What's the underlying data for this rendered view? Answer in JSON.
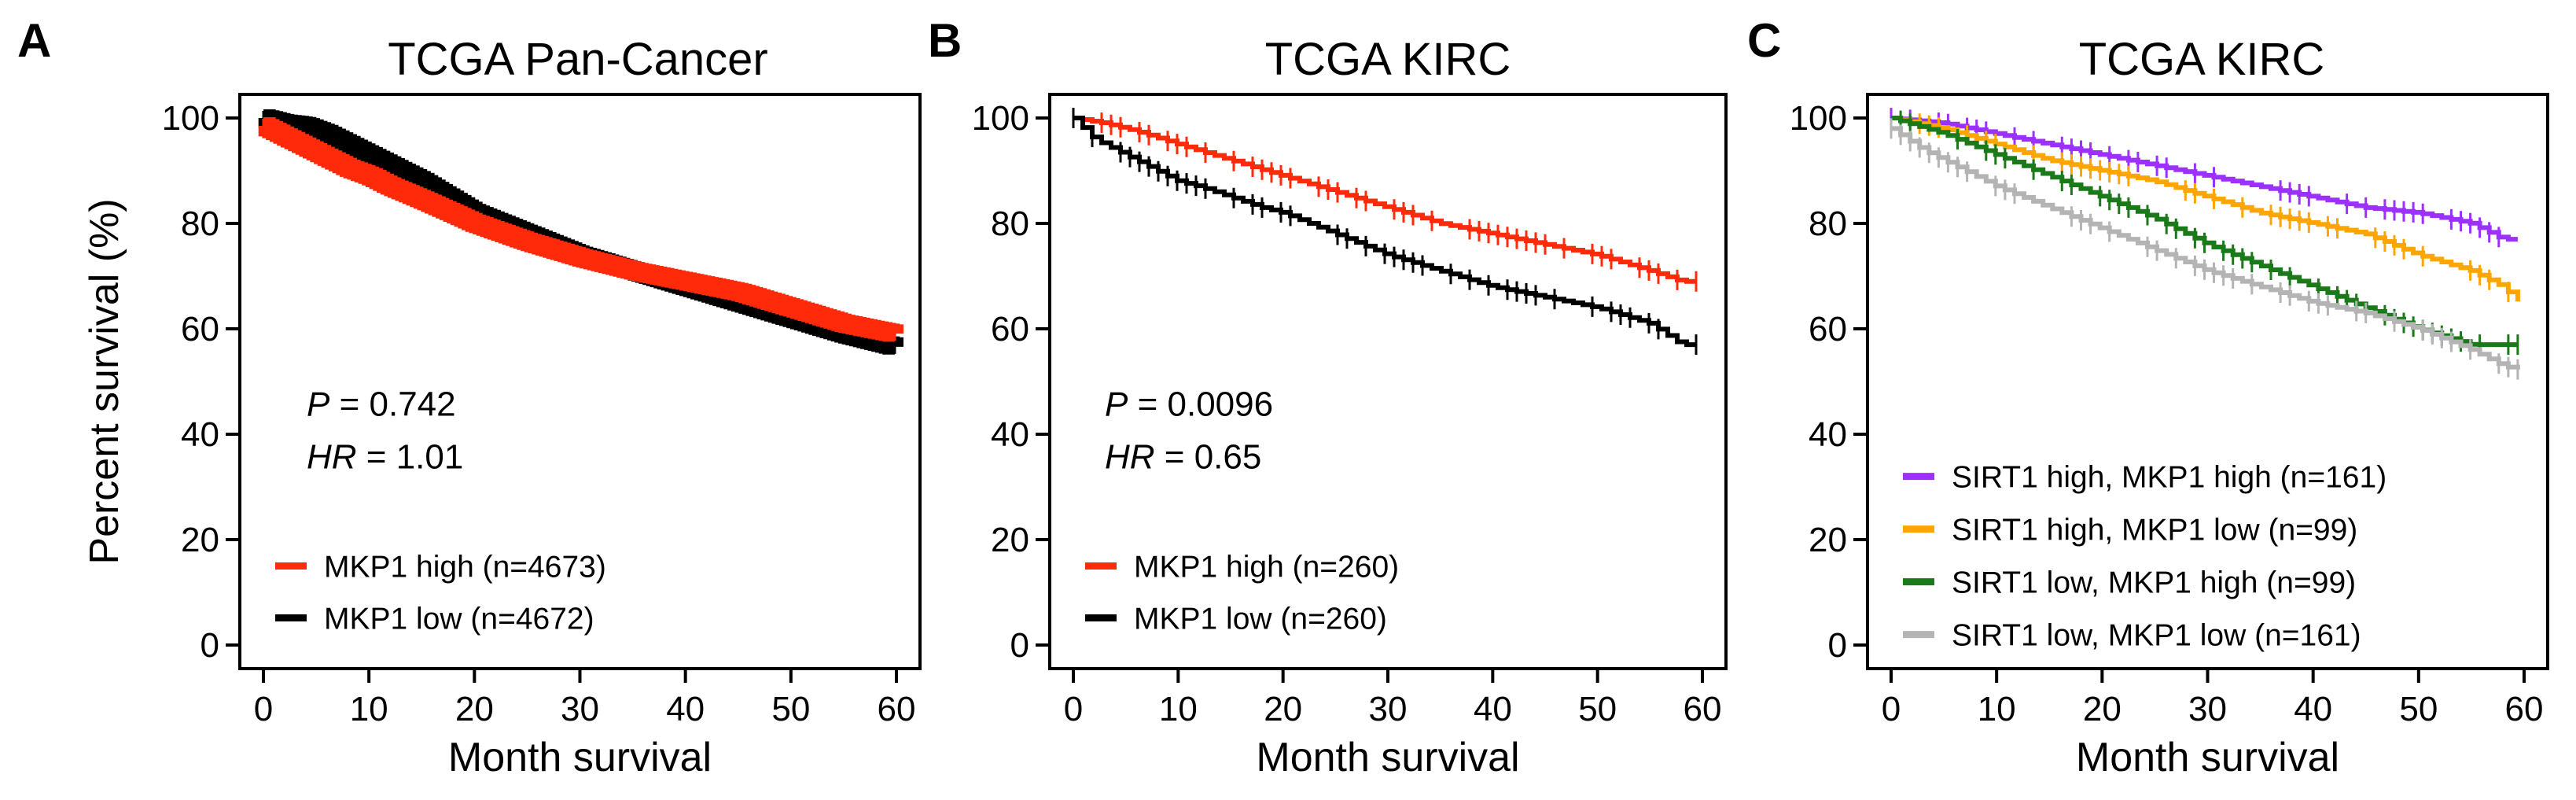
{
  "figure": {
    "shared": {
      "ylabel": "Percent survival (%)",
      "xlabel": "Month survival"
    }
  },
  "chart_data": [
    {
      "id": "A",
      "letter": "A",
      "type": "line",
      "title": "TCGA Pan-Cancer",
      "xlabel": "Month survival",
      "ylabel": "Percent survival (%)",
      "xlim": [
        0,
        60
      ],
      "ylim": [
        0,
        100
      ],
      "xticks": [
        0,
        10,
        20,
        30,
        40,
        50,
        60
      ],
      "yticks": [
        0,
        20,
        40,
        60,
        80,
        100
      ],
      "legend_position": "bottom-left",
      "stats": {
        "p_label": "P",
        "p_value": "= 0.742",
        "hr_label": "HR",
        "hr_value": "= 1.01"
      },
      "series": [
        {
          "name": "MKP1 low (n=4672)",
          "color": "#000000",
          "censor_density": 2,
          "x": [
            0,
            1,
            2,
            3,
            4,
            6,
            8,
            10,
            12,
            15,
            20,
            25,
            30,
            35,
            40,
            45,
            50,
            55,
            60
          ],
          "y": [
            100,
            99.5,
            99,
            98.8,
            98.5,
            97,
            95,
            93,
            91,
            88,
            82,
            78,
            74,
            71,
            68,
            65,
            62,
            59,
            56.5
          ]
        },
        {
          "name": "MKP1 high (n=4673)",
          "color": "#ff2a0a",
          "censor_density": 2,
          "x": [
            0,
            1,
            2,
            3,
            4,
            6,
            8,
            10,
            12,
            15,
            20,
            25,
            30,
            35,
            40,
            45,
            50,
            55,
            60
          ],
          "y": [
            98.5,
            97.5,
            96.5,
            95.5,
            94.5,
            92.5,
            90.5,
            89,
            87,
            84.5,
            80,
            76.5,
            73.5,
            71,
            69,
            67,
            64,
            61,
            59
          ]
        }
      ]
    },
    {
      "id": "B",
      "letter": "B",
      "type": "line",
      "title": "TCGA KIRC",
      "xlabel": "Month survival",
      "ylabel": "",
      "xlim": [
        0,
        60
      ],
      "ylim": [
        0,
        100
      ],
      "xticks": [
        0,
        10,
        20,
        30,
        40,
        50,
        60
      ],
      "yticks": [
        0,
        20,
        40,
        60,
        80,
        100
      ],
      "legend_position": "bottom-left",
      "stats": {
        "p_label": "P",
        "p_value": "= 0.0096",
        "hr_label": "HR",
        "hr_value": "= 0.65"
      },
      "series": [
        {
          "name": "MKP1 high (n=260)",
          "color": "#ff2a0a",
          "censor_density": 1,
          "x": [
            0,
            3,
            6,
            10,
            15,
            20,
            25,
            30,
            35,
            40,
            45,
            50,
            55,
            58,
            60
          ],
          "y": [
            100,
            99,
            97.5,
            95,
            92,
            89,
            86,
            83,
            80,
            78,
            76,
            74,
            71,
            69,
            69
          ]
        },
        {
          "name": "MKP1 low (n=260)",
          "color": "#000000",
          "censor_density": 1,
          "x": [
            0,
            2,
            4,
            6,
            8,
            10,
            12,
            15,
            18,
            20,
            25,
            30,
            35,
            40,
            45,
            50,
            55,
            58,
            60
          ],
          "y": [
            100,
            96,
            94,
            92,
            90,
            88,
            87,
            85,
            83,
            82,
            78,
            74,
            71,
            68,
            66,
            64,
            61,
            57,
            57
          ]
        }
      ]
    },
    {
      "id": "C",
      "letter": "C",
      "type": "line",
      "title": "TCGA KIRC",
      "xlabel": "Month survival",
      "ylabel": "",
      "xlim": [
        0,
        60
      ],
      "ylim": [
        0,
        100
      ],
      "xticks": [
        0,
        10,
        20,
        30,
        40,
        50,
        60
      ],
      "yticks": [
        0,
        20,
        40,
        60,
        80,
        100
      ],
      "legend_position": "bottom-left",
      "series": [
        {
          "name": "SIRT1 high, MKP1 high (n=161)",
          "color": "#9b30ff",
          "censor_density": 1,
          "x": [
            0,
            5,
            10,
            15,
            20,
            25,
            30,
            35,
            40,
            45,
            50,
            55,
            58,
            60
          ],
          "y": [
            100,
            99,
            97,
            95,
            93,
            91,
            89,
            87,
            85,
            83,
            82,
            80,
            77,
            77
          ]
        },
        {
          "name": "SIRT1 high, MKP1 low (n=99)",
          "color": "#ffa500",
          "censor_density": 1,
          "x": [
            0,
            5,
            10,
            15,
            20,
            25,
            30,
            35,
            40,
            45,
            50,
            55,
            58,
            60
          ],
          "y": [
            100,
            98,
            95,
            92,
            90,
            88,
            85,
            82,
            80,
            78,
            74,
            71,
            68,
            64
          ]
        },
        {
          "name": "SIRT1 low, MKP1 high (n=99)",
          "color": "#1a7a1a",
          "censor_density": 1,
          "x": [
            0,
            5,
            10,
            15,
            20,
            25,
            30,
            35,
            40,
            45,
            50,
            55,
            58,
            60
          ],
          "y": [
            100,
            97,
            93,
            89,
            85,
            81,
            76,
            72,
            68,
            64,
            60,
            57,
            57,
            57
          ]
        },
        {
          "name": "SIRT1 low, MKP1 low (n=161)",
          "color": "#b4b4b4",
          "censor_density": 1,
          "x": [
            0,
            3,
            6,
            10,
            15,
            20,
            25,
            30,
            35,
            40,
            45,
            50,
            55,
            58,
            60
          ],
          "y": [
            98,
            94,
            91,
            87,
            83,
            79,
            75,
            71,
            68,
            65,
            63,
            60,
            56,
            53,
            52
          ]
        }
      ]
    }
  ]
}
